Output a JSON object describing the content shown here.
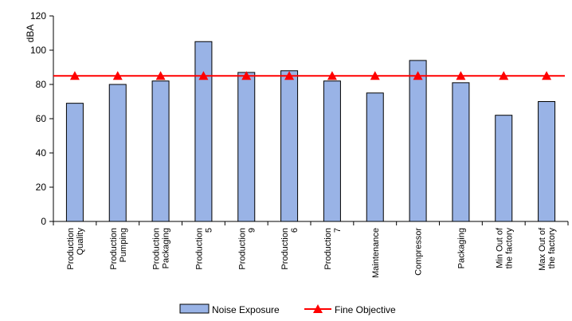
{
  "chart_data": {
    "type": "bar",
    "ylabel": "dBA",
    "ylim": [
      0,
      120
    ],
    "yticks": [
      0,
      20,
      40,
      60,
      80,
      100,
      120
    ],
    "grid": false,
    "legend_position": "bottom",
    "categories": [
      [
        "Production",
        "Quality"
      ],
      [
        "Production",
        "Pumping"
      ],
      [
        "Production",
        "Packaging"
      ],
      [
        "Production",
        "5"
      ],
      [
        "Production",
        "9"
      ],
      [
        "Production",
        "6"
      ],
      [
        "Production",
        "7"
      ],
      [
        "Maintenance"
      ],
      [
        "Compressor"
      ],
      [
        "Packaging"
      ],
      [
        "Min Out of",
        "the factory"
      ],
      [
        "Max Out of",
        "the factory"
      ]
    ],
    "series": [
      {
        "name": "Noise Exposure",
        "kind": "bar",
        "color": "#99b3e6",
        "values": [
          69,
          80,
          82,
          105,
          87,
          88,
          82,
          75,
          94,
          81,
          62,
          70
        ]
      },
      {
        "name": "Fine Objective",
        "kind": "line",
        "marker": "triangle",
        "color": "#ff0000",
        "values": [
          85,
          85,
          85,
          85,
          85,
          85,
          85,
          85,
          85,
          85,
          85,
          85
        ]
      }
    ]
  }
}
